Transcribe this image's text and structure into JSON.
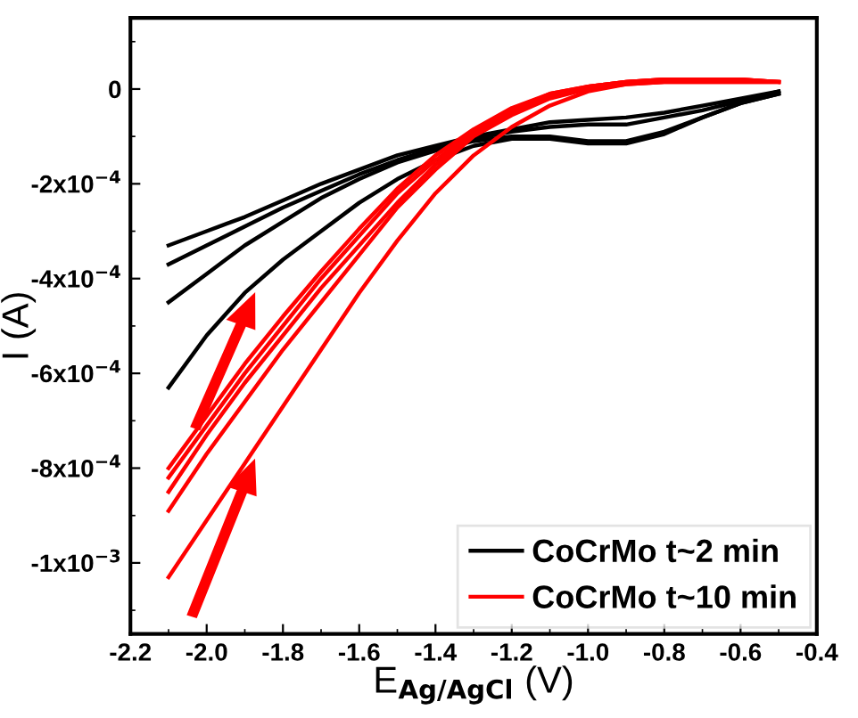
{
  "chart_data": {
    "type": "line",
    "xlabel": "E$_{Ag/AgCl}$ (V)",
    "ylabel": "I (A)",
    "x": [
      -2.1,
      -2.0,
      -1.9,
      -1.8,
      -1.7,
      -1.6,
      -1.5,
      -1.4,
      -1.3,
      -1.2,
      -1.1,
      -1.0,
      -0.9,
      -0.8,
      -0.7,
      -0.6,
      -0.5
    ],
    "series": [
      {
        "name": "CoCrMo t~2 min",
        "color": "#000000",
        "values": [
          -0.00063,
          -0.00052,
          -0.00043,
          -0.00036,
          -0.0003,
          -0.00024,
          -0.00019,
          -0.00015,
          -0.00012,
          -0.000105,
          -0.000105,
          -0.000115,
          -0.000115,
          -9.5e-05,
          -6e-05,
          -3e-05,
          -1e-05
        ]
      },
      {
        "color": "#000000",
        "values": [
          -0.00045,
          -0.00039,
          -0.00033,
          -0.00028,
          -0.00023,
          -0.00019,
          -0.000155,
          -0.00013,
          -0.00011,
          -0.0001,
          -0.0001,
          -0.00011,
          -0.00011,
          -9e-05,
          -6e-05,
          -3e-05,
          -1e-05
        ]
      },
      {
        "color": "#000000",
        "values": [
          -0.00037,
          -0.00033,
          -0.00029,
          -0.00025,
          -0.000215,
          -0.00018,
          -0.00015,
          -0.000125,
          -0.000105,
          -9e-05,
          -8e-05,
          -7.5e-05,
          -7.5e-05,
          -6e-05,
          -4.5e-05,
          -2.5e-05,
          -5e-06
        ]
      },
      {
        "color": "#000000",
        "values": [
          -0.00033,
          -0.0003,
          -0.00027,
          -0.000235,
          -0.0002,
          -0.00017,
          -0.00014,
          -0.00012,
          -0.0001,
          -8.5e-05,
          -7e-05,
          -6.5e-05,
          -6e-05,
          -5e-05,
          -3.5e-05,
          -2e-05,
          -5e-06
        ]
      },
      {
        "name": "CoCrMo t~10 min",
        "color": "#ff0000",
        "values": [
          -0.00103,
          -0.00091,
          -0.00079,
          -0.00067,
          -0.00055,
          -0.00043,
          -0.00032,
          -0.00022,
          -0.00014,
          -8e-05,
          -3.5e-05,
          -5e-06,
          1e-05,
          1.5e-05,
          1.5e-05,
          1.5e-05,
          1.5e-05
        ]
      },
      {
        "color": "#ff0000",
        "values": [
          -0.00089,
          -0.00077,
          -0.00066,
          -0.00055,
          -0.00045,
          -0.00035,
          -0.00025,
          -0.00017,
          -0.0001,
          -5.5e-05,
          -2e-05,
          0.0,
          1e-05,
          1.5e-05,
          1.5e-05,
          1.5e-05,
          1.5e-05
        ]
      },
      {
        "color": "#ff0000",
        "values": [
          -0.00085,
          -0.00073,
          -0.00062,
          -0.00052,
          -0.00042,
          -0.00033,
          -0.00024,
          -0.00016,
          -9.5e-05,
          -5e-05,
          -1.5e-05,
          5e-06,
          1.5e-05,
          2e-05,
          2e-05,
          2e-05,
          1.5e-05
        ]
      },
      {
        "color": "#ff0000",
        "values": [
          -0.00082,
          -0.00071,
          -0.0006,
          -0.0005,
          -0.0004,
          -0.00031,
          -0.00022,
          -0.00015,
          -9e-05,
          -4.5e-05,
          -1e-05,
          5e-06,
          1.5e-05,
          2e-05,
          2e-05,
          2e-05,
          1.5e-05
        ]
      },
      {
        "color": "#ff0000",
        "values": [
          -0.0008,
          -0.00069,
          -0.00058,
          -0.00048,
          -0.000385,
          -0.000295,
          -0.00021,
          -0.00014,
          -8.5e-05,
          -4e-05,
          -1e-05,
          5e-06,
          1.5e-05,
          2e-05,
          2e-05,
          2e-05,
          1.5e-05
        ]
      }
    ],
    "xlim": [
      -2.2,
      -0.4
    ],
    "xticks": [
      -2.2,
      {
        "value": -2.0,
        "label": "-2.0"
      },
      -1.8,
      -1.6,
      -1.4,
      -1.2,
      {
        "value": -1.0,
        "label": "-1.0"
      },
      -0.8,
      -0.6,
      -0.4
    ],
    "ylim": [
      -0.00115,
      0.00015
    ],
    "yticks": [
      {
        "value": -0.001,
        "label": "-1x10$^{−3}$"
      },
      {
        "value": -0.0008,
        "label": "-8x10$^{−4}$"
      },
      {
        "value": -0.0006,
        "label": "-6x10$^{−4}$"
      },
      {
        "value": -0.0004,
        "label": "-4x10$^{−4}$"
      },
      {
        "value": -0.0002,
        "label": "-2x10$^{−4}$"
      },
      0
    ],
    "legend": "bottom right"
  }
}
